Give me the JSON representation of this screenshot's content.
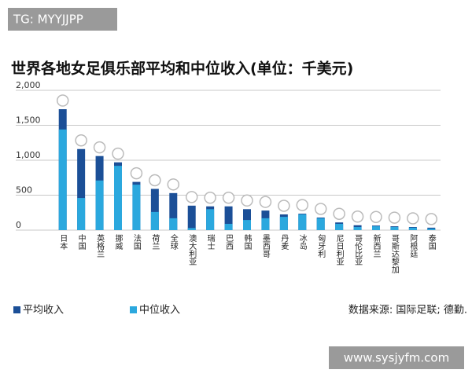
{
  "watermark_top": "TG: MYYJJPP",
  "watermark_bottom": "www.sysjyfm.com",
  "chart_data": {
    "type": "bar",
    "title": "世界各地女足俱乐部平均和中位收入(单位：千美元)",
    "source": "数据来源: 国际足联; 德勤.",
    "categories": [
      "日本",
      "中国",
      "英格兰",
      "挪威",
      "法国",
      "荷兰",
      "全球",
      "澳大利亚",
      "瑞士",
      "巴西",
      "韩国",
      "墨西哥",
      "丹麦",
      "冰岛",
      "匈牙利",
      "尼日利亚",
      "哥伦比亚",
      "新西兰",
      "哥斯达黎加",
      "阿根廷",
      "泰国"
    ],
    "series": [
      {
        "name": "平均收入",
        "color": "#1b4f97",
        "values": [
          1730,
          1160,
          1060,
          970,
          690,
          590,
          530,
          350,
          340,
          340,
          300,
          280,
          225,
          235,
          180,
          110,
          70,
          65,
          55,
          45,
          35
        ]
      },
      {
        "name": "中位收入",
        "color": "#2ba8de",
        "values": [
          1440,
          460,
          710,
          920,
          650,
          260,
          170,
          30,
          300,
          90,
          145,
          170,
          190,
          225,
          170,
          90,
          45,
          55,
          45,
          35,
          20
        ]
      }
    ],
    "ylim": [
      0,
      2000
    ],
    "yticks": [
      0,
      500,
      {
        "value": 1000,
        "label": "1,000"
      },
      {
        "value": 1500,
        "label": "1,500"
      },
      {
        "value": 2000,
        "label": "2,000"
      }
    ],
    "grid": true,
    "legend": "bottom-left"
  }
}
